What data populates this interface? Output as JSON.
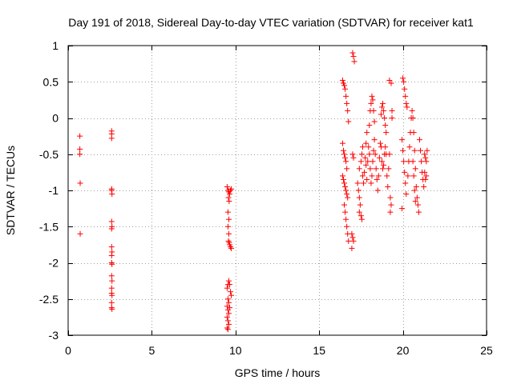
{
  "chart_data": {
    "type": "scatter",
    "title": "Day 191 of 2018, Sidereal Day-to-day VTEC variation (SDTVAR) for receiver kat1",
    "xlabel": "GPS time / hours",
    "ylabel": "SDTVAR / TECUs",
    "xlim": [
      0,
      25
    ],
    "ylim": [
      -3,
      1
    ],
    "xticks": [
      0,
      5,
      10,
      15,
      20,
      25
    ],
    "yticks": [
      -3,
      -2.5,
      -2,
      -1.5,
      -1,
      -0.5,
      0,
      0.5,
      1
    ],
    "xtick_labels": [
      "0",
      "5",
      "10",
      "15",
      "20",
      "25"
    ],
    "ytick_labels": [
      "-3",
      "-2.5",
      "-2",
      "-1.5",
      "-1",
      "-0.5",
      "0",
      "0.5",
      "1"
    ],
    "grid": true,
    "marker": "+",
    "series": [
      {
        "name": "SDTVAR",
        "color": "#ff0000",
        "points": [
          [
            0.7,
            -0.25
          ],
          [
            0.7,
            -0.43
          ],
          [
            0.7,
            -0.5
          ],
          [
            0.72,
            -0.9
          ],
          [
            0.72,
            -1.6
          ],
          [
            2.6,
            -0.18
          ],
          [
            2.6,
            -0.22
          ],
          [
            2.6,
            -0.28
          ],
          [
            2.6,
            -0.98
          ],
          [
            2.6,
            -1.0
          ],
          [
            2.62,
            -1.05
          ],
          [
            2.6,
            -1.43
          ],
          [
            2.62,
            -1.5
          ],
          [
            2.6,
            -1.53
          ],
          [
            2.6,
            -1.78
          ],
          [
            2.62,
            -1.85
          ],
          [
            2.6,
            -1.9
          ],
          [
            2.6,
            -2.0
          ],
          [
            2.62,
            -2.02
          ],
          [
            2.6,
            -2.18
          ],
          [
            2.62,
            -2.25
          ],
          [
            2.6,
            -2.35
          ],
          [
            2.6,
            -2.42
          ],
          [
            2.62,
            -2.45
          ],
          [
            2.6,
            -2.55
          ],
          [
            2.6,
            -2.62
          ],
          [
            2.62,
            -2.64
          ],
          [
            9.5,
            -0.95
          ],
          [
            9.55,
            -1.0
          ],
          [
            9.6,
            -1.02
          ],
          [
            9.65,
            -1.05
          ],
          [
            9.7,
            -1.0
          ],
          [
            9.75,
            -0.98
          ],
          [
            9.58,
            -1.1
          ],
          [
            9.62,
            -1.15
          ],
          [
            9.55,
            -1.3
          ],
          [
            9.6,
            -1.4
          ],
          [
            9.55,
            -1.5
          ],
          [
            9.6,
            -1.6
          ],
          [
            9.58,
            -1.7
          ],
          [
            9.62,
            -1.72
          ],
          [
            9.65,
            -1.75
          ],
          [
            9.7,
            -1.78
          ],
          [
            9.75,
            -1.8
          ],
          [
            9.5,
            -2.35
          ],
          [
            9.55,
            -2.3
          ],
          [
            9.6,
            -2.25
          ],
          [
            9.65,
            -2.3
          ],
          [
            9.7,
            -2.4
          ],
          [
            9.75,
            -2.45
          ],
          [
            9.55,
            -2.5
          ],
          [
            9.6,
            -2.55
          ],
          [
            9.5,
            -2.6
          ],
          [
            9.55,
            -2.65
          ],
          [
            9.6,
            -2.7
          ],
          [
            9.65,
            -2.62
          ],
          [
            9.5,
            -2.75
          ],
          [
            9.55,
            -2.8
          ],
          [
            9.6,
            -2.85
          ],
          [
            9.5,
            -2.9
          ],
          [
            9.55,
            -2.92
          ],
          [
            16.4,
            0.52
          ],
          [
            16.45,
            0.48
          ],
          [
            16.5,
            0.45
          ],
          [
            16.55,
            0.4
          ],
          [
            16.6,
            0.3
          ],
          [
            16.65,
            0.2
          ],
          [
            16.7,
            0.1
          ],
          [
            16.75,
            -0.05
          ],
          [
            16.4,
            -0.35
          ],
          [
            16.45,
            -0.45
          ],
          [
            16.5,
            -0.5
          ],
          [
            16.55,
            -0.55
          ],
          [
            16.6,
            -0.6
          ],
          [
            16.65,
            -0.7
          ],
          [
            16.4,
            -0.8
          ],
          [
            16.45,
            -0.85
          ],
          [
            16.5,
            -0.9
          ],
          [
            16.55,
            -0.95
          ],
          [
            16.6,
            -1.0
          ],
          [
            16.65,
            -1.05
          ],
          [
            16.7,
            -1.1
          ],
          [
            16.5,
            -1.2
          ],
          [
            16.55,
            -1.3
          ],
          [
            16.6,
            -1.4
          ],
          [
            16.65,
            -1.5
          ],
          [
            16.7,
            -1.6
          ],
          [
            16.75,
            -1.7
          ],
          [
            17.0,
            0.9
          ],
          [
            17.05,
            0.85
          ],
          [
            17.1,
            0.78
          ],
          [
            17.0,
            -0.5
          ],
          [
            17.05,
            -0.55
          ],
          [
            16.95,
            -1.6
          ],
          [
            17.0,
            -1.65
          ],
          [
            17.05,
            -1.7
          ],
          [
            16.95,
            -1.8
          ],
          [
            17.3,
            -0.9
          ],
          [
            17.35,
            -1.0
          ],
          [
            17.4,
            -1.1
          ],
          [
            17.45,
            -1.2
          ],
          [
            17.4,
            -1.3
          ],
          [
            17.5,
            -1.35
          ],
          [
            17.55,
            -1.4
          ],
          [
            17.4,
            -0.7
          ],
          [
            17.5,
            -0.6
          ],
          [
            17.55,
            -0.5
          ],
          [
            17.6,
            -0.4
          ],
          [
            17.6,
            -0.8
          ],
          [
            17.65,
            -0.9
          ],
          [
            17.7,
            -0.75
          ],
          [
            17.75,
            -0.55
          ],
          [
            17.8,
            -0.35
          ],
          [
            17.85,
            -0.2
          ],
          [
            17.8,
            -0.65
          ],
          [
            17.85,
            -0.85
          ],
          [
            17.9,
            -0.6
          ],
          [
            17.95,
            -0.4
          ],
          [
            18.0,
            -0.1
          ],
          [
            18.05,
            0.1
          ],
          [
            18.1,
            0.2
          ],
          [
            18.15,
            0.3
          ],
          [
            18.2,
            0.25
          ],
          [
            18.25,
            0.1
          ],
          [
            18.3,
            -0.05
          ],
          [
            18.0,
            -0.5
          ],
          [
            18.05,
            -0.7
          ],
          [
            18.1,
            -0.9
          ],
          [
            18.15,
            -0.8
          ],
          [
            18.2,
            -0.6
          ],
          [
            18.25,
            -0.45
          ],
          [
            18.3,
            -0.3
          ],
          [
            18.35,
            -0.5
          ],
          [
            18.4,
            -0.7
          ],
          [
            18.45,
            -0.85
          ],
          [
            18.5,
            -1.0
          ],
          [
            18.55,
            -0.8
          ],
          [
            18.6,
            -0.55
          ],
          [
            18.65,
            -0.35
          ],
          [
            18.7,
            0.05
          ],
          [
            18.75,
            0.15
          ],
          [
            18.8,
            0.2
          ],
          [
            18.85,
            0.1
          ],
          [
            18.9,
            0.0
          ],
          [
            18.95,
            -0.1
          ],
          [
            19.0,
            -0.2
          ],
          [
            18.7,
            -0.4
          ],
          [
            18.75,
            -0.6
          ],
          [
            18.8,
            -0.7
          ],
          [
            18.85,
            -0.65
          ],
          [
            18.9,
            -0.5
          ],
          [
            18.95,
            -0.4
          ],
          [
            19.0,
            -0.5
          ],
          [
            19.05,
            -0.8
          ],
          [
            19.1,
            -0.95
          ],
          [
            19.15,
            -0.7
          ],
          [
            19.2,
            -0.5
          ],
          [
            19.2,
            0.52
          ],
          [
            19.3,
            0.48
          ],
          [
            19.35,
            0.1
          ],
          [
            19.25,
            -1.1
          ],
          [
            19.3,
            -1.2
          ],
          [
            19.25,
            -1.3
          ],
          [
            19.35,
            0.0
          ],
          [
            20.0,
            0.55
          ],
          [
            20.05,
            0.5
          ],
          [
            20.1,
            0.4
          ],
          [
            20.15,
            0.3
          ],
          [
            20.2,
            0.2
          ],
          [
            20.25,
            0.15
          ],
          [
            19.95,
            -0.3
          ],
          [
            20.0,
            -0.45
          ],
          [
            20.05,
            -0.6
          ],
          [
            20.1,
            -0.75
          ],
          [
            20.15,
            -0.9
          ],
          [
            20.2,
            -1.05
          ],
          [
            19.95,
            -1.25
          ],
          [
            20.3,
            -0.8
          ],
          [
            20.35,
            -0.6
          ],
          [
            20.4,
            -0.4
          ],
          [
            20.45,
            -0.2
          ],
          [
            20.5,
            0.0
          ],
          [
            20.55,
            0.1
          ],
          [
            20.6,
            0.0
          ],
          [
            20.65,
            -0.2
          ],
          [
            20.7,
            -0.45
          ],
          [
            20.75,
            -0.7
          ],
          [
            20.8,
            -0.95
          ],
          [
            20.85,
            -1.1
          ],
          [
            20.9,
            -1.2
          ],
          [
            20.95,
            -1.3
          ],
          [
            20.6,
            -0.6
          ],
          [
            20.65,
            -0.8
          ],
          [
            20.7,
            -1.0
          ],
          [
            20.75,
            -1.15
          ],
          [
            21.0,
            -0.3
          ],
          [
            21.05,
            -0.45
          ],
          [
            21.1,
            -0.6
          ],
          [
            21.15,
            -0.75
          ],
          [
            21.2,
            -0.85
          ],
          [
            21.25,
            -0.95
          ],
          [
            21.3,
            -0.5
          ],
          [
            21.35,
            -0.55
          ],
          [
            21.4,
            -0.6
          ],
          [
            21.45,
            -0.45
          ],
          [
            21.3,
            -0.75
          ],
          [
            21.35,
            -0.85
          ],
          [
            21.4,
            -0.8
          ]
        ]
      }
    ]
  }
}
